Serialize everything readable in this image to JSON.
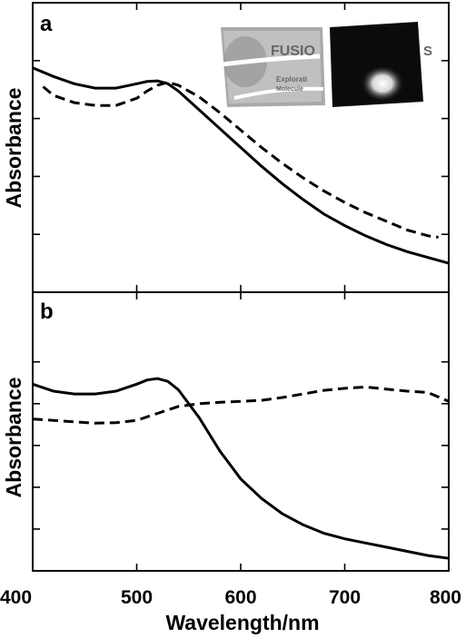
{
  "chart_data": [
    {
      "panel": "a",
      "type": "line",
      "xlabel": "",
      "ylabel": "Absorbance",
      "xlim": [
        400,
        800
      ],
      "ylim": [
        0,
        1
      ],
      "x_ticks": [
        400,
        500,
        600,
        700,
        800
      ],
      "y_ticks": [
        0.2,
        0.4,
        0.6,
        0.8
      ],
      "series": [
        {
          "style": "solid",
          "x": [
            400,
            420,
            440,
            460,
            480,
            500,
            510,
            520,
            530,
            540,
            560,
            580,
            600,
            620,
            640,
            660,
            680,
            700,
            720,
            740,
            760,
            780,
            800
          ],
          "y": [
            0.775,
            0.745,
            0.72,
            0.705,
            0.705,
            0.72,
            0.728,
            0.73,
            0.72,
            0.695,
            0.63,
            0.565,
            0.5,
            0.435,
            0.375,
            0.32,
            0.27,
            0.23,
            0.195,
            0.165,
            0.14,
            0.12,
            0.1
          ]
        },
        {
          "style": "dashed",
          "x": [
            410,
            420,
            440,
            460,
            480,
            500,
            510,
            520,
            530,
            540,
            560,
            580,
            600,
            620,
            640,
            660,
            680,
            700,
            720,
            740,
            760,
            780,
            790
          ],
          "y": [
            0.71,
            0.68,
            0.655,
            0.645,
            0.645,
            0.67,
            0.695,
            0.715,
            0.725,
            0.715,
            0.675,
            0.62,
            0.56,
            0.5,
            0.445,
            0.395,
            0.35,
            0.31,
            0.275,
            0.245,
            0.215,
            0.195,
            0.19
          ]
        }
      ],
      "inset_photos": {
        "left_photo_text": "FUSIO",
        "left_photo_text_2": "Explorati",
        "left_photo_text_3": "Molecule",
        "right_photo_text": "S"
      }
    },
    {
      "panel": "b",
      "type": "line",
      "xlabel": "Wavelength/nm",
      "ylabel": "Absorbance",
      "xlim": [
        400,
        800
      ],
      "ylim": [
        0,
        1
      ],
      "x_ticks": [
        400,
        500,
        600,
        700,
        800
      ],
      "y_ticks": [
        0.15,
        0.3,
        0.45,
        0.6,
        0.75
      ],
      "series": [
        {
          "style": "solid",
          "x": [
            400,
            420,
            440,
            460,
            480,
            500,
            510,
            520,
            530,
            540,
            560,
            580,
            600,
            620,
            640,
            660,
            680,
            700,
            720,
            740,
            760,
            780,
            800
          ],
          "y": [
            0.67,
            0.645,
            0.635,
            0.635,
            0.645,
            0.67,
            0.685,
            0.69,
            0.68,
            0.65,
            0.55,
            0.43,
            0.33,
            0.26,
            0.205,
            0.165,
            0.135,
            0.115,
            0.1,
            0.085,
            0.07,
            0.055,
            0.045
          ]
        },
        {
          "style": "dashed",
          "x": [
            400,
            420,
            440,
            460,
            480,
            500,
            520,
            540,
            560,
            580,
            600,
            620,
            640,
            660,
            680,
            700,
            720,
            740,
            760,
            780,
            800
          ],
          "y": [
            0.545,
            0.54,
            0.535,
            0.53,
            0.532,
            0.54,
            0.565,
            0.59,
            0.6,
            0.605,
            0.608,
            0.612,
            0.622,
            0.635,
            0.648,
            0.655,
            0.66,
            0.652,
            0.645,
            0.64,
            0.608
          ]
        }
      ]
    }
  ]
}
